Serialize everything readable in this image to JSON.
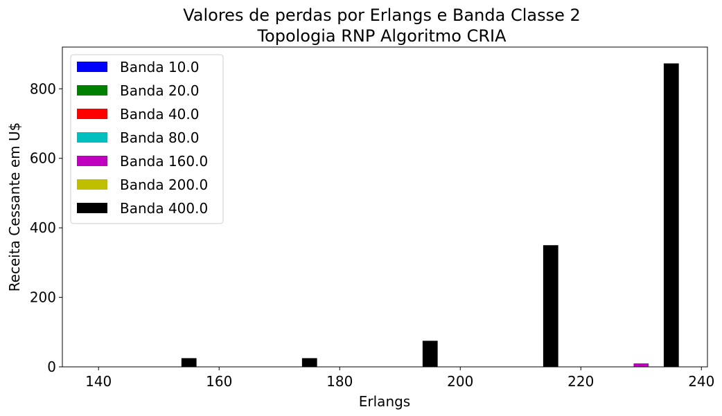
{
  "chart_data": {
    "type": "bar",
    "title_line1": "Valores de perdas por Erlangs e Banda Classe 2",
    "title_line2": "Topologia RNP Algoritmo CRIA",
    "xlabel": "Erlangs",
    "ylabel": "Receita Cessante em U$",
    "xlim": [
      134,
      241
    ],
    "ylim": [
      0,
      920
    ],
    "xticks": [
      140,
      160,
      180,
      200,
      220,
      240
    ],
    "yticks": [
      0,
      200,
      400,
      600,
      800
    ],
    "grid": false,
    "legend_position": "upper-left",
    "bar_width": 2.5,
    "series": [
      {
        "name": "Banda 10.0",
        "color": "#0000ff",
        "points": []
      },
      {
        "name": "Banda 20.0",
        "color": "#008000",
        "points": []
      },
      {
        "name": "Banda 40.0",
        "color": "#ff0000",
        "points": []
      },
      {
        "name": "Banda 80.0",
        "color": "#00bfbf",
        "points": []
      },
      {
        "name": "Banda 160.0",
        "color": "#bf00bf",
        "points": [
          {
            "x": 230,
            "y": 10
          }
        ]
      },
      {
        "name": "Banda 200.0",
        "color": "#bfbf00",
        "points": []
      },
      {
        "name": "Banda 400.0",
        "color": "#000000",
        "points": [
          {
            "x": 155,
            "y": 25
          },
          {
            "x": 175,
            "y": 25
          },
          {
            "x": 195,
            "y": 75
          },
          {
            "x": 215,
            "y": 350
          },
          {
            "x": 235,
            "y": 873
          }
        ]
      }
    ]
  }
}
